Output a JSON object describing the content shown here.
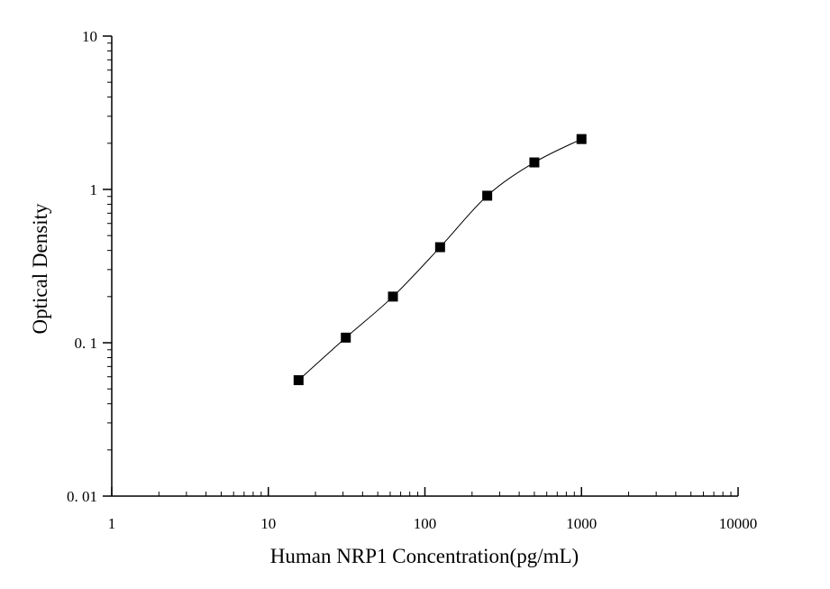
{
  "chart_data": {
    "type": "scatter",
    "title": "",
    "xlabel": "Human NRP1 Concentration(pg/mL)",
    "ylabel": "Optical Density",
    "xscale": "log",
    "yscale": "log",
    "xlim": [
      1,
      10000
    ],
    "ylim": [
      0.01,
      10
    ],
    "grid": false,
    "legend": "none",
    "x_ticks": [
      {
        "value": 1,
        "label": "1"
      },
      {
        "value": 10,
        "label": "10"
      },
      {
        "value": 100,
        "label": "100"
      },
      {
        "value": 1000,
        "label": "1000"
      },
      {
        "value": 10000,
        "label": "10000"
      }
    ],
    "y_ticks": [
      {
        "value": 0.01,
        "label": "0. 01"
      },
      {
        "value": 0.1,
        "label": "0. 1"
      },
      {
        "value": 1,
        "label": "1"
      },
      {
        "value": 10,
        "label": "10"
      }
    ],
    "series": [
      {
        "marker": "square",
        "line": "smooth",
        "color": "#000000",
        "x": [
          15.6,
          31.25,
          62.5,
          125,
          250,
          500,
          1000
        ],
        "y": [
          0.057,
          0.108,
          0.2,
          0.42,
          0.91,
          1.5,
          2.13
        ]
      }
    ]
  }
}
